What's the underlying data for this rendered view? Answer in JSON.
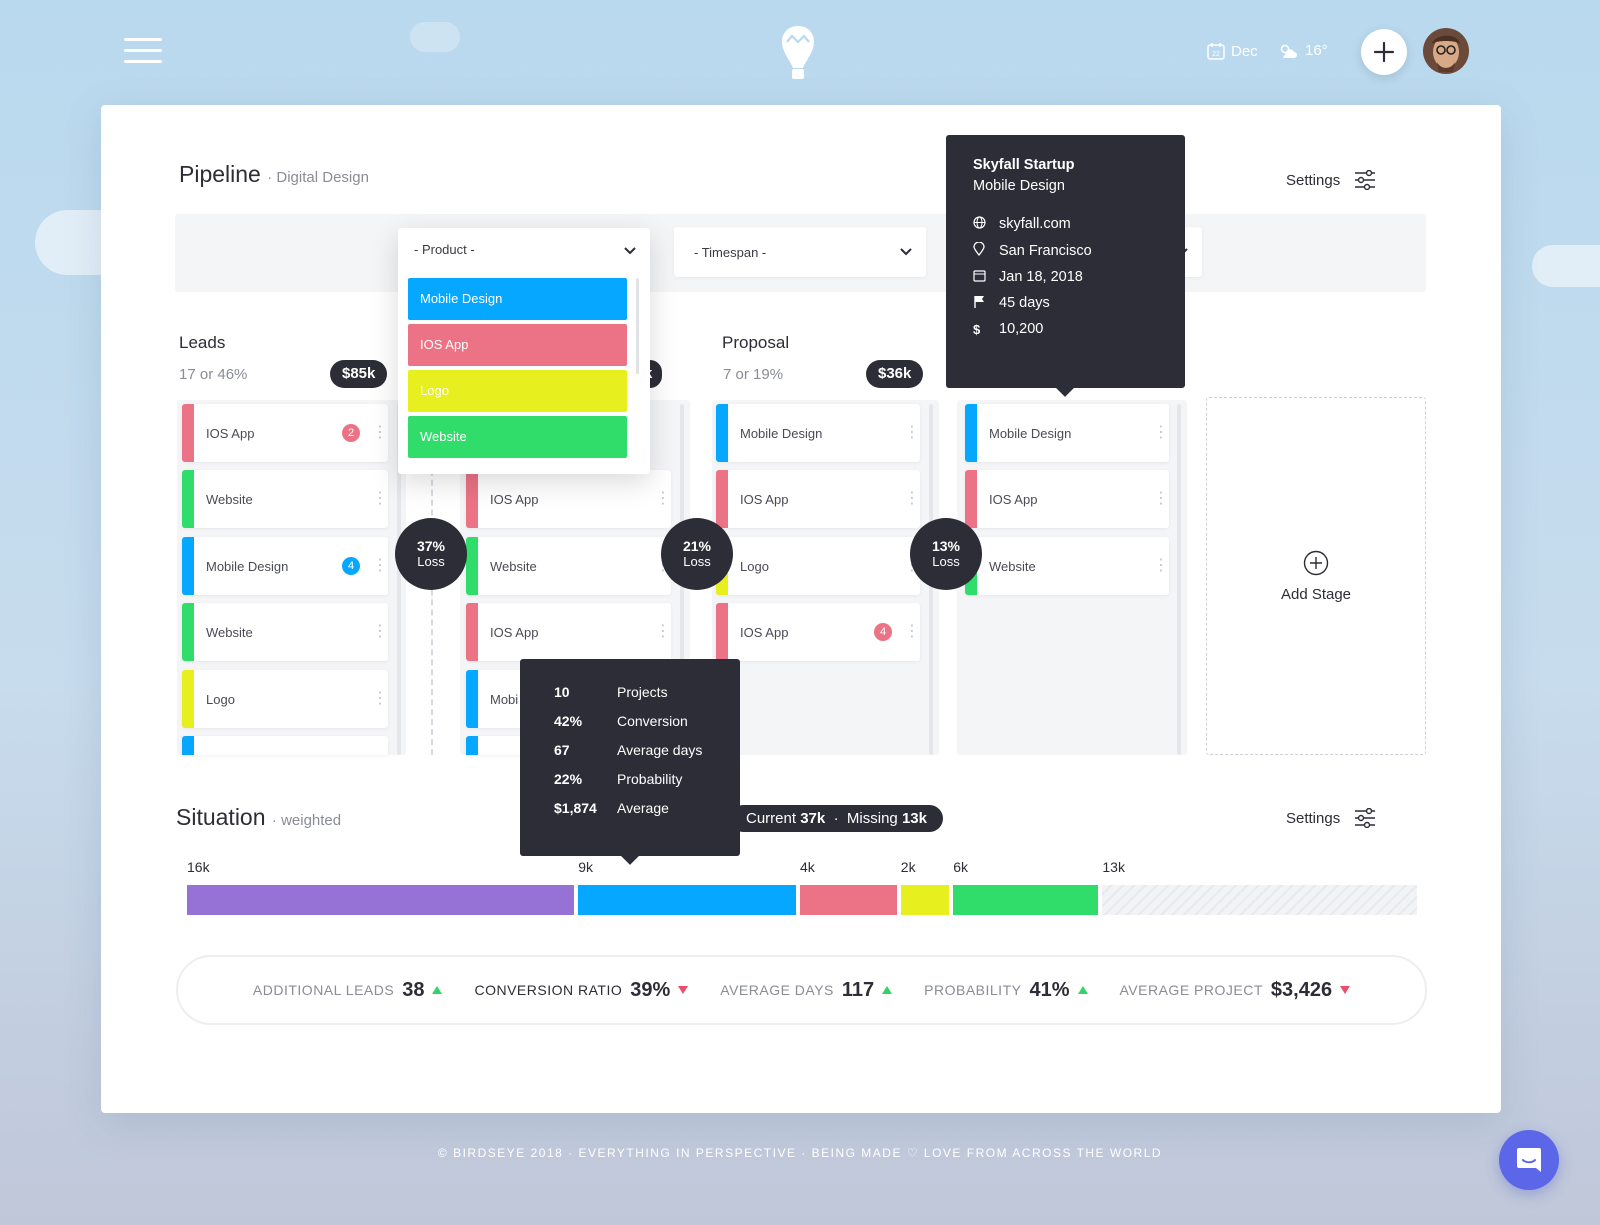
{
  "colors": {
    "blue": "#06a8ff",
    "pink": "#ec7385",
    "yellow": "#e8ef1f",
    "green": "#30dd6b",
    "purple": "#9672d6",
    "dark": "#2c2d36"
  },
  "topbar": {
    "date": "Dec",
    "calendar_day": "22",
    "temperature": "16°",
    "logo_icon": "balloon-icon"
  },
  "pipeline": {
    "title": "Pipeline",
    "subtitle": "· Digital Design",
    "settings_label": "Settings"
  },
  "filters": {
    "product_placeholder": "- Product -",
    "timespan_placeholder": "- Timespan -",
    "product_options": [
      "Mobile Design",
      "IOS App",
      "Logo",
      "Website"
    ]
  },
  "stages": {
    "leads": {
      "title": "Leads",
      "summary": "17 or 46%",
      "value": "$85k",
      "items": [
        {
          "label": "IOS App",
          "badge": "2"
        },
        {
          "label": "Website"
        },
        {
          "label": "Mobile Design",
          "badge": "4"
        },
        {
          "label": "Website"
        },
        {
          "label": "Logo"
        }
      ]
    },
    "stage2": {
      "value_fragment": "k",
      "items": [
        {
          "label": "IOS App"
        },
        {
          "label": "Website"
        },
        {
          "label": "IOS App"
        },
        {
          "label": "Mobi"
        }
      ]
    },
    "proposal": {
      "title": "Proposal",
      "summary": "7 or 19%",
      "value": "$36k",
      "items": [
        {
          "label": "Mobile Design"
        },
        {
          "label": "IOS App"
        },
        {
          "label": "Logo"
        },
        {
          "label": "IOS App",
          "badge": "4"
        }
      ]
    },
    "stage4": {
      "items": [
        {
          "label": "Mobile Design"
        },
        {
          "label": "IOS App"
        },
        {
          "label": "Website"
        }
      ]
    },
    "add_stage_label": "Add Stage"
  },
  "losses": [
    {
      "pct": "37%",
      "label": "Loss"
    },
    {
      "pct": "21%",
      "label": "Loss"
    },
    {
      "pct": "13%",
      "label": "Loss"
    }
  ],
  "tooltip_project": {
    "title": "Skyfall Startup",
    "subtitle": "Mobile Design",
    "website": "skyfall.com",
    "location": "San Francisco",
    "date": "Jan 18, 2018",
    "duration": "45 days",
    "amount": "10,200"
  },
  "tooltip_stats": [
    {
      "v": "10",
      "k": "Projects"
    },
    {
      "v": "42%",
      "k": "Conversion"
    },
    {
      "v": "67",
      "k": "Average days"
    },
    {
      "v": "22%",
      "k": "Probability"
    },
    {
      "v": "$1,874",
      "k": "Average"
    }
  ],
  "situation": {
    "title": "Situation",
    "subtitle": "· weighted",
    "settings_label": "Settings",
    "current_label": "Current",
    "current_value": "37k",
    "missing_label": "Missing",
    "missing_value": "13k",
    "segments": [
      {
        "label": "16k",
        "value": 16
      },
      {
        "label": "9k",
        "value": 9
      },
      {
        "label": "4k",
        "value": 4
      },
      {
        "label": "2k",
        "value": 2
      },
      {
        "label": "6k",
        "value": 6
      },
      {
        "label": "13k",
        "value": 13
      }
    ]
  },
  "stats": [
    {
      "label": "ADDITIONAL LEADS",
      "value": "38",
      "trend": "up"
    },
    {
      "label": "CONVERSION RATIO",
      "value": "39%",
      "trend": "down"
    },
    {
      "label": "AVERAGE DAYS",
      "value": "117",
      "trend": "up"
    },
    {
      "label": "PROBABILITY",
      "value": "41%",
      "trend": "up"
    },
    {
      "label": "AVERAGE PROJECT",
      "value": "$3,426",
      "trend": "down"
    }
  ],
  "footer": {
    "text_before": "© BIRDSEYE 2018 · EVERYTHING IN PERSPECTIVE · BEING MADE",
    "text_after": "LOVE FROM ACROSS THE WORLD"
  }
}
